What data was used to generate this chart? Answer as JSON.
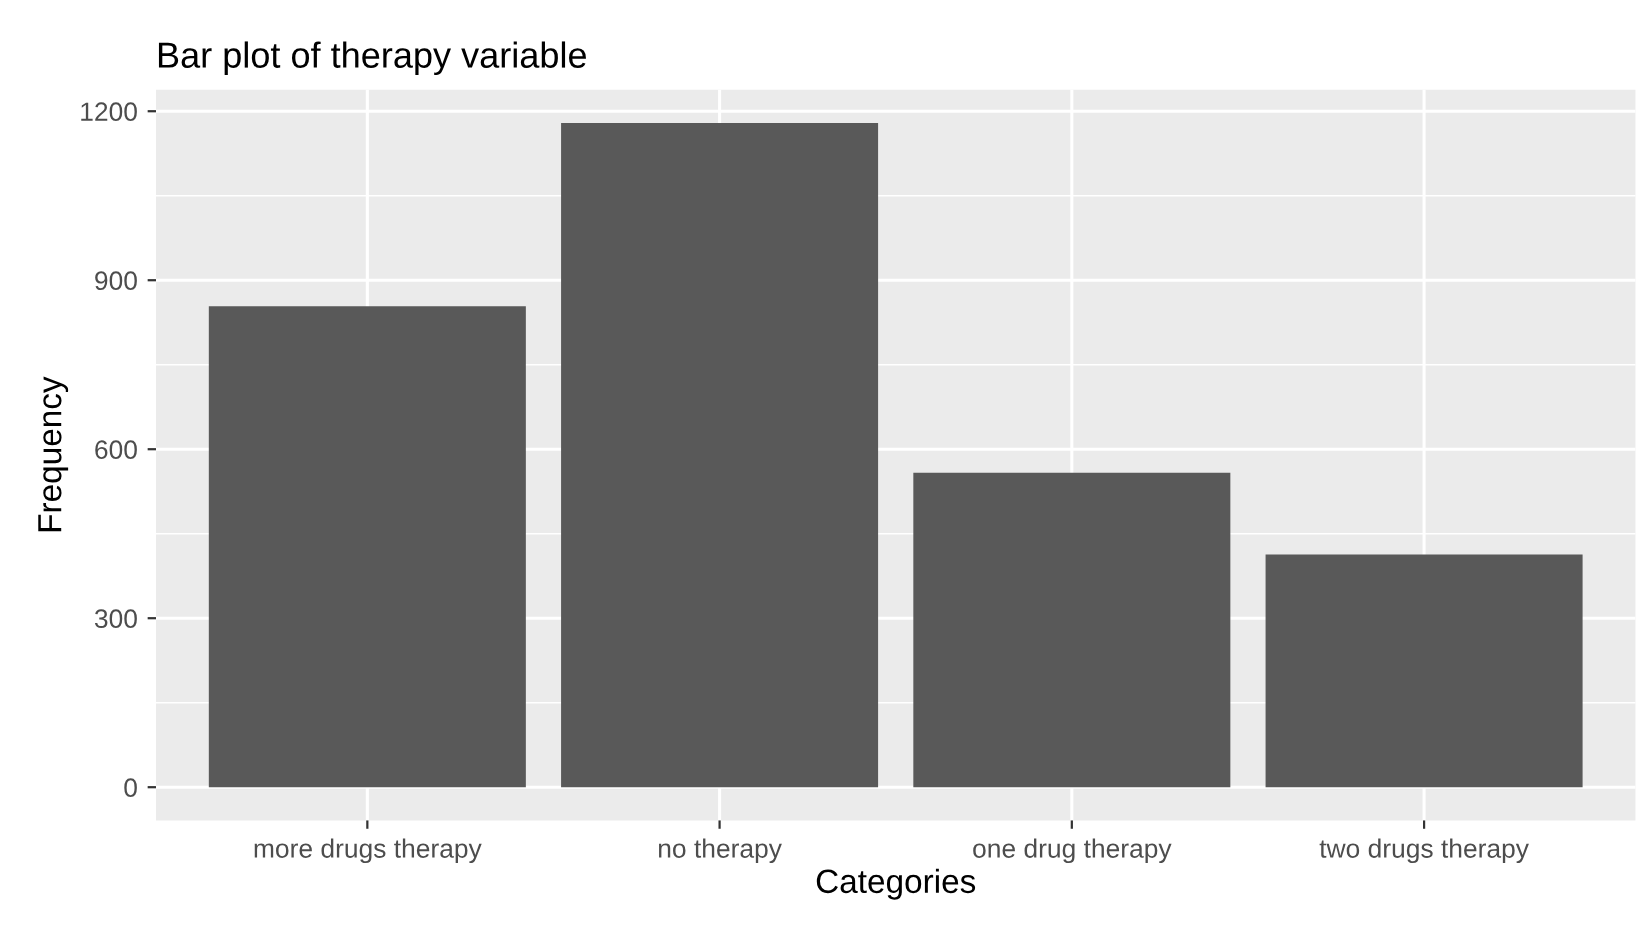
{
  "chart_data": {
    "type": "bar",
    "title": "Bar plot of therapy variable",
    "xlabel": "Categories",
    "ylabel": "Frequency",
    "categories": [
      "more drugs therapy",
      "no therapy",
      "one drug therapy",
      "two drugs therapy"
    ],
    "values": [
      854,
      1179,
      558,
      413
    ],
    "color": "#595959",
    "ylim": [
      -59,
      1238
    ],
    "yticks": [
      0,
      300,
      600,
      900,
      1200
    ],
    "grid": true
  }
}
